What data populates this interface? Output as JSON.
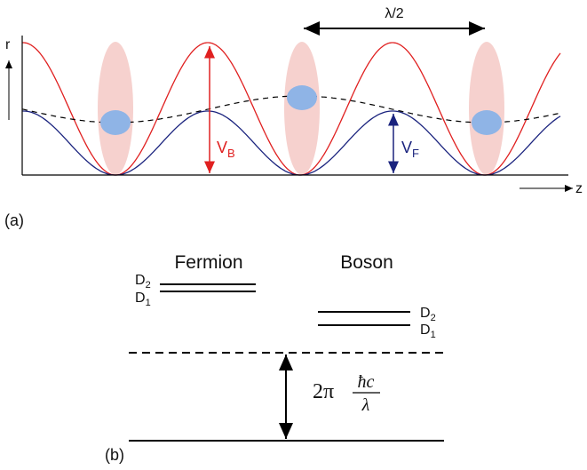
{
  "panel_a": {
    "label": "(a)",
    "axis_y": "r",
    "axis_x": "z",
    "spacing": "λ/2",
    "depth_boson": {
      "base": "V",
      "sub": "B"
    },
    "depth_fermion": {
      "base": "V",
      "sub": "F"
    }
  },
  "panel_b": {
    "label": "(b)",
    "fermion": {
      "title": "Fermion",
      "levels": [
        {
          "base": "D",
          "sub": "2"
        },
        {
          "base": "D",
          "sub": "1"
        }
      ]
    },
    "boson": {
      "title": "Boson",
      "levels": [
        {
          "base": "D",
          "sub": "2"
        },
        {
          "base": "D",
          "sub": "1"
        }
      ]
    },
    "gap": {
      "prefix": "2π",
      "numerator": "ħc",
      "denominator": "λ"
    }
  }
}
